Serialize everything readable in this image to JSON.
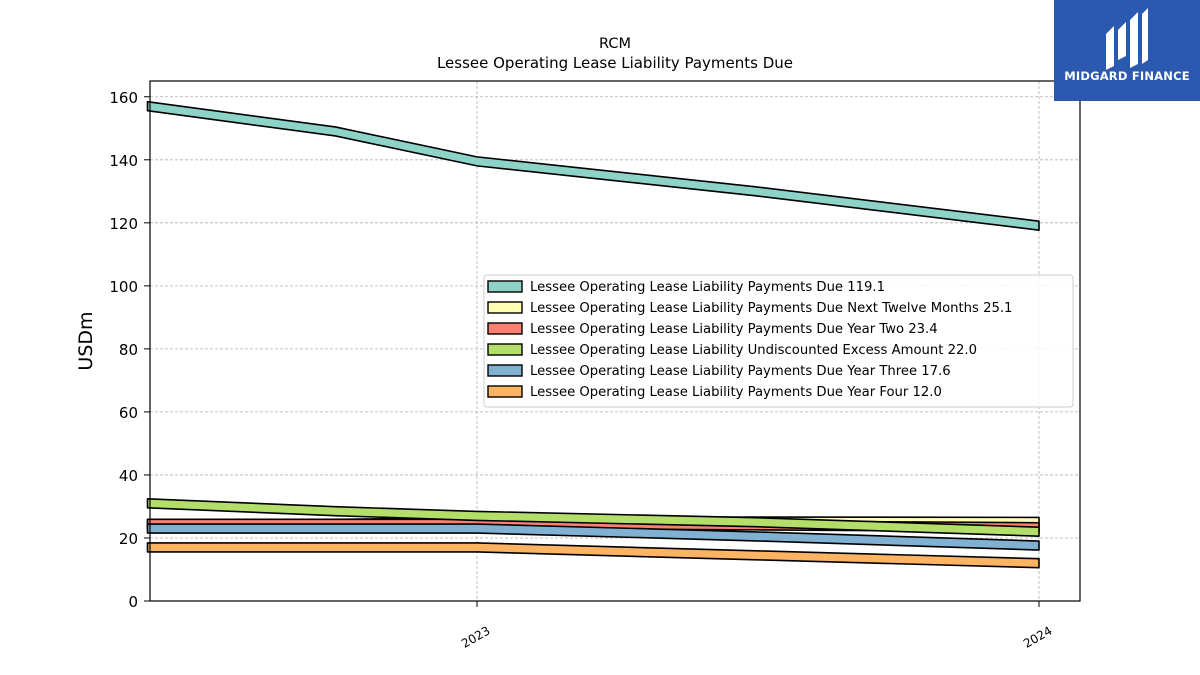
{
  "chart_data": {
    "type": "line",
    "title": "RCM",
    "subtitle": "Lessee Operating Lease Liability Payments Due",
    "xlabel": "",
    "ylabel": "USDm",
    "ylim": [
      0,
      165
    ],
    "yticks": [
      0,
      20,
      40,
      60,
      80,
      100,
      120,
      140,
      160
    ],
    "xticks": [
      {
        "value": "2023-01-01",
        "label": "2023"
      },
      {
        "value": "2024-01-01",
        "label": "2024"
      }
    ],
    "x": [
      "2022-06-01",
      "2022-10-01",
      "2023-01-01",
      "2023-07-01",
      "2024-01-01"
    ],
    "grid": true,
    "legend_position": "center-right",
    "series": [
      {
        "name": "Lessee Operating Lease Liability Payments Due  119.1",
        "color": "#8dd3c7",
        "values": [
          157,
          149,
          139.5,
          130,
          119.1
        ]
      },
      {
        "name": "Lessee Operating Lease Liability Payments Due Next Twelve Months  25.1",
        "color": "#ffffb3",
        "values": [
          24,
          24.5,
          25,
          25.2,
          25.1
        ]
      },
      {
        "name": "Lessee Operating Lease Liability Payments Due Year Two  23.4",
        "color": "#fb8072",
        "values": [
          24.5,
          24.5,
          24.5,
          24,
          23.4
        ]
      },
      {
        "name": "Lessee Operating Lease Liability Undiscounted Excess Amount  22.0",
        "color": "#b3de69",
        "values": [
          31,
          28.5,
          27,
          25,
          22.0
        ]
      },
      {
        "name": "Lessee Operating Lease Liability Payments Due Year Three  17.6",
        "color": "#80b1d3",
        "values": [
          23,
          23,
          23,
          20.5,
          17.6
        ]
      },
      {
        "name": "Lessee Operating Lease Liability Payments Due Year Four  12.0",
        "color": "#fdb462",
        "values": [
          17,
          17,
          17,
          14.5,
          12.0
        ]
      }
    ]
  },
  "logo": {
    "text": "MIDGARD FINANCE"
  }
}
